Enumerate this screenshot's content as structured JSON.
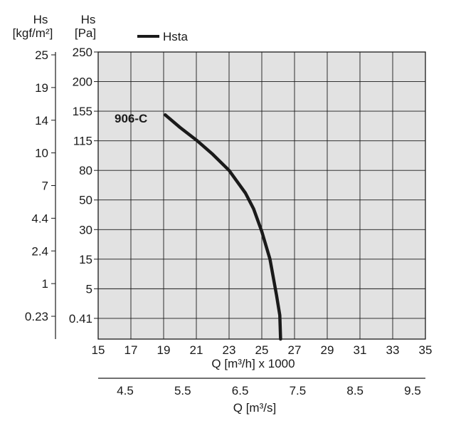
{
  "chart_data": {
    "type": "line",
    "title": "",
    "left_axis_kgf": {
      "unit_symbol": "Hs",
      "unit": "[kgf/m²]",
      "ticks": [
        "25",
        "19",
        "14",
        "10",
        "7",
        "4.4",
        "2.4",
        "1",
        "0.23"
      ]
    },
    "left_axis_pa": {
      "unit_symbol": "Hs",
      "unit": "[Pa]",
      "ticks": [
        "250",
        "200",
        "155",
        "115",
        "80",
        "50",
        "30",
        "15",
        "5",
        "0.41"
      ]
    },
    "x_axis_m3h": {
      "label": "Q [m³/h] x 1000",
      "ticks": [
        "15",
        "17",
        "19",
        "21",
        "23",
        "25",
        "27",
        "29",
        "31",
        "33",
        "35"
      ],
      "range": [
        15,
        35
      ]
    },
    "x_axis_m3s": {
      "label": "Q [m³/s]",
      "ticks": [
        "4.5",
        "5.5",
        "6.5",
        "7.5",
        "8.5",
        "9.5"
      ]
    },
    "legend": {
      "entries": [
        "Hsta"
      ],
      "position": "top"
    },
    "grid": true,
    "series": [
      {
        "name": "906-C",
        "legend_entry": "Hsta",
        "x": [
          19.1,
          20.0,
          21.0,
          22.0,
          23.0,
          24.0,
          24.5,
          25.0,
          25.5,
          25.9,
          26.1,
          26.15
        ],
        "y": [
          150,
          133,
          116,
          99,
          80,
          57,
          44,
          29,
          15,
          4,
          0.9,
          0.41
        ]
      }
    ]
  }
}
